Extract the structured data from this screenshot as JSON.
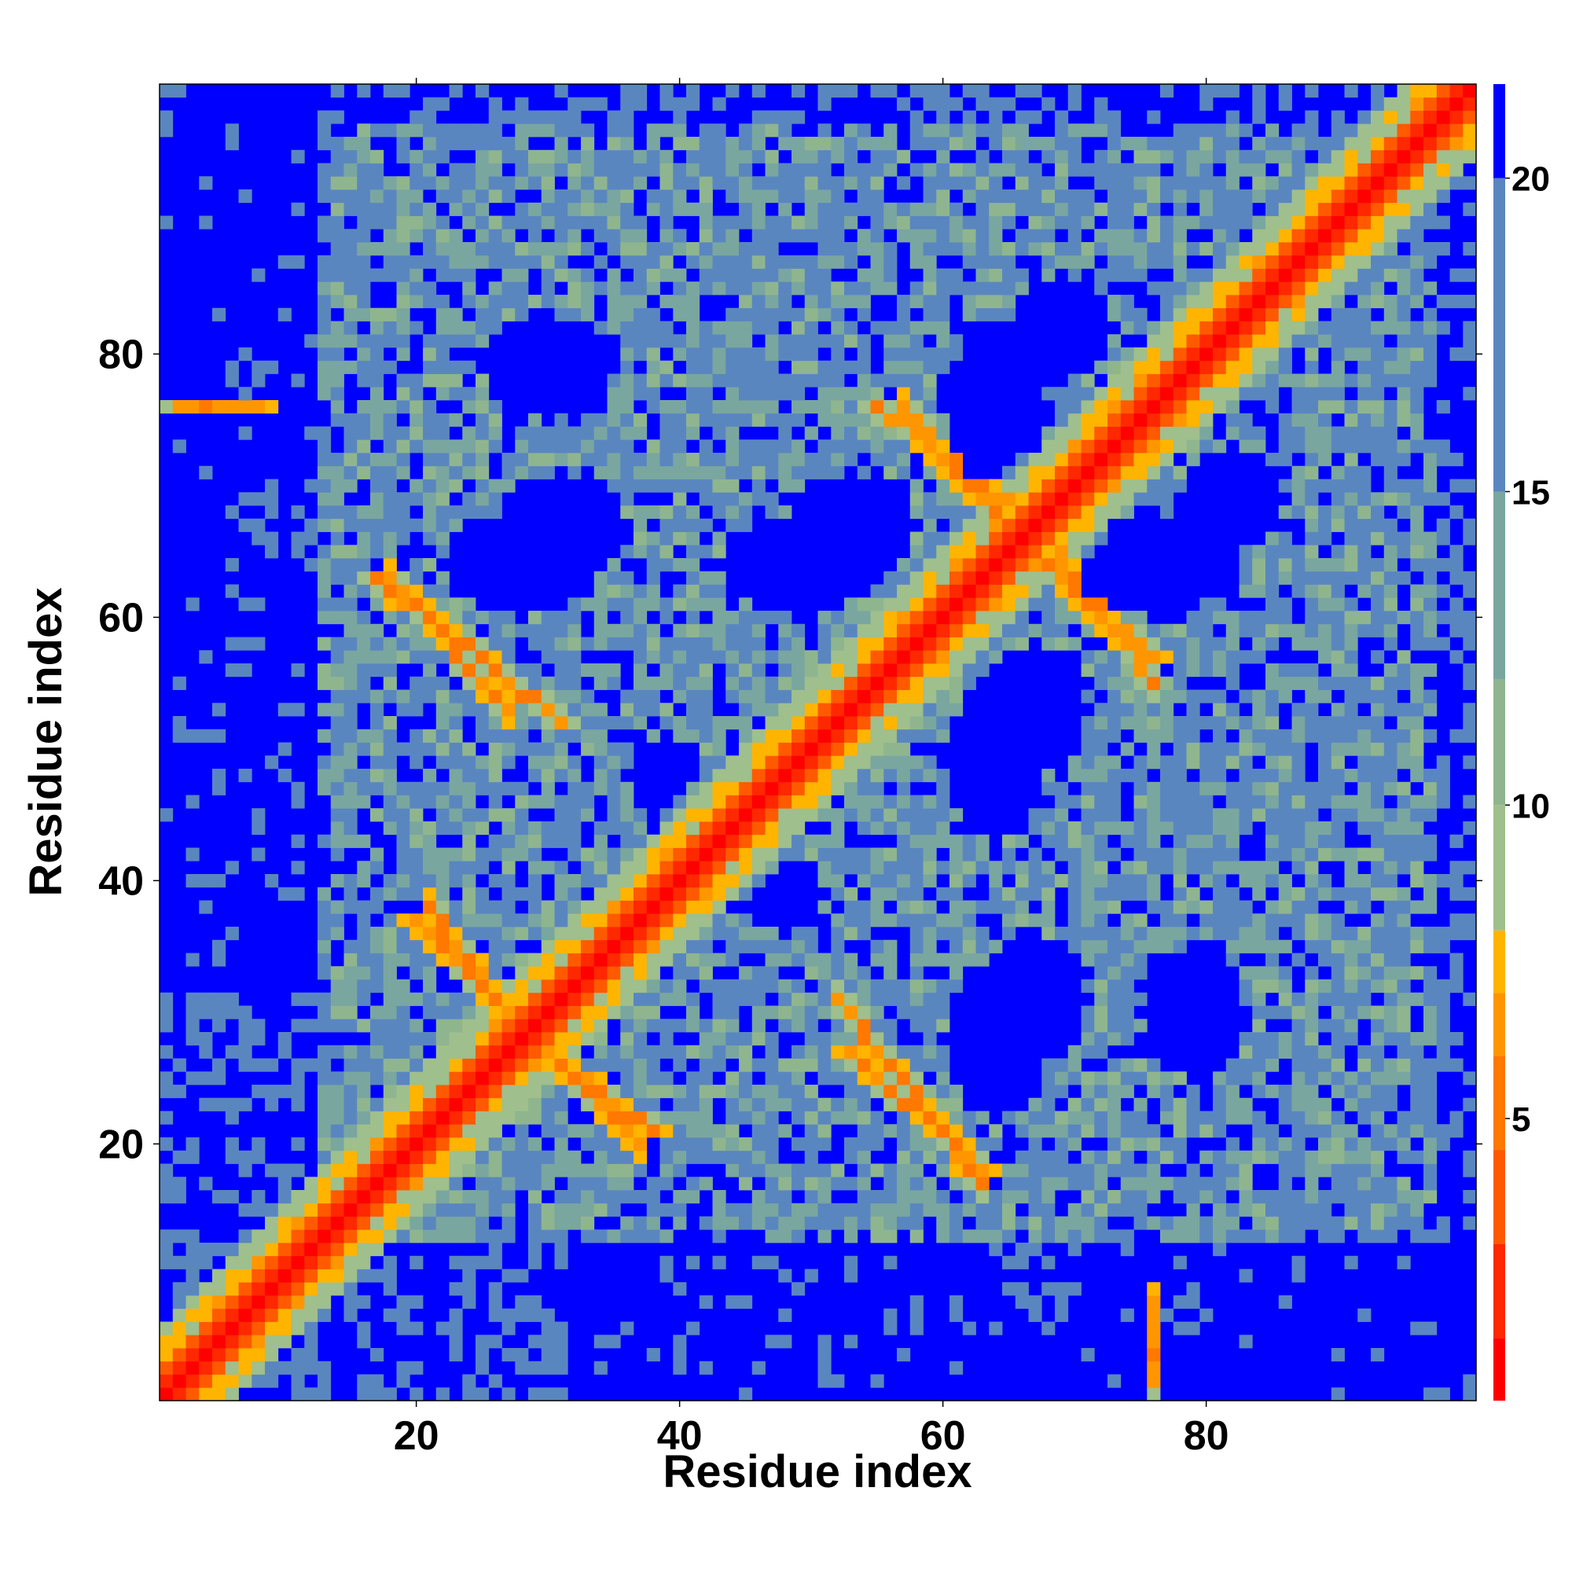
{
  "chart_data": {
    "type": "heatmap",
    "title": "",
    "xlabel": "Residue index",
    "ylabel": "Residue index",
    "xlim": [
      1,
      100
    ],
    "ylim": [
      1,
      100
    ],
    "x_ticks": [
      20,
      40,
      60,
      80
    ],
    "y_ticks": [
      20,
      40,
      60,
      80
    ],
    "colorbar": {
      "min": 0.5,
      "max": 21.5,
      "ticks": [
        5,
        10,
        15,
        20
      ],
      "colors": [
        "#ff0000",
        "#ff2800",
        "#ff5a00",
        "#ff7800",
        "#ff9600",
        "#ffb400",
        "#9fbf8c",
        "#8fb58f",
        "#7aa6a0",
        "#5a86c0",
        "#0000ff"
      ]
    },
    "grid": false,
    "description_values": {
      "matrix_size": 100,
      "diagonal_distance": 1,
      "background_distance": 21,
      "helix_pairs": [
        {
          "i_start": 20,
          "j_start": 37,
          "i_end": 30,
          "j_end": 27
        },
        {
          "i_start": 17,
          "j_start": 63,
          "i_end": 31,
          "j_end": 52
        },
        {
          "i_start": 31,
          "j_start": 26,
          "i_end": 38,
          "j_end": 21
        },
        {
          "i_start": 55,
          "j_start": 76,
          "i_end": 66,
          "j_end": 68
        },
        {
          "i_start": 53,
          "j_start": 27,
          "i_end": 63,
          "j_end": 18
        },
        {
          "i_start": 65,
          "j_start": 66,
          "i_end": 76,
          "j_end": 57
        },
        {
          "i_start": 2,
          "j_start": 76,
          "i_end": 8,
          "j_end": 76
        }
      ]
    }
  }
}
